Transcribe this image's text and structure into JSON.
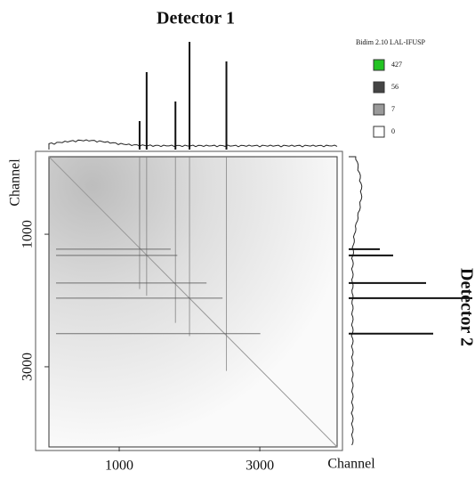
{
  "chart_data": {
    "type": "matrix",
    "title": "Detector 1",
    "y_title": "Detector 2",
    "x_label": "Channel",
    "y_label": "Channel",
    "xlim": [
      0,
      4100
    ],
    "ylim": [
      -170,
      4210
    ],
    "xticks": [
      1000,
      3000
    ],
    "yticks": [
      1000,
      3000
    ],
    "scale_title": "Bidim 2.10 LAL-IFUSP",
    "scale": [
      {
        "value": 427,
        "color": "#22c322"
      },
      {
        "value": 56,
        "color": "#444444"
      },
      {
        "value": 7,
        "color": "#9a9a9a"
      },
      {
        "value": 0,
        "color": "#ffffff"
      }
    ],
    "x_projection": {
      "peaks": [
        1290,
        1390,
        1800,
        2000,
        2525
      ],
      "counts": [
        32,
        87,
        54,
        121,
        99
      ]
    },
    "y_projection": {
      "peaks": [
        1226,
        1320,
        1736,
        1964,
        2501
      ],
      "counts": [
        35,
        50,
        87,
        139,
        95
      ]
    }
  }
}
